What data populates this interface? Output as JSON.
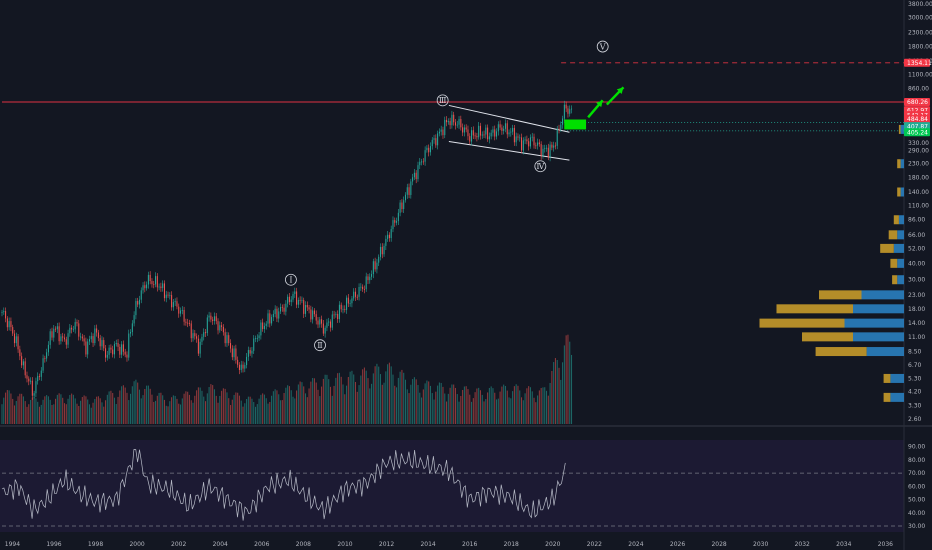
{
  "chart_data": {
    "type": "candlestick",
    "price_axis": {
      "scale": "log",
      "ticks": [
        "3800.00",
        "3000.00",
        "2300.00",
        "1800.00",
        "1400.00",
        "1100.00",
        "860.00",
        "680.00",
        "530.00",
        "420.00",
        "330.00",
        "290.00",
        "230.00",
        "180.00",
        "140.00",
        "110.00",
        "86.00",
        "66.00",
        "52.00",
        "40.00",
        "30.00",
        "23.00",
        "18.00",
        "14.00",
        "11.00",
        "8.50",
        "6.70",
        "5.30",
        "4.20",
        "3.30",
        "2.60"
      ],
      "range": [
        2.6,
        3800
      ]
    },
    "time_axis": {
      "ticks": [
        "1994",
        "1996",
        "1998",
        "2000",
        "2002",
        "2004",
        "2006",
        "2008",
        "2010",
        "2012",
        "2014",
        "2016",
        "2018",
        "2020",
        "2022",
        "2024",
        "2026",
        "2028",
        "2030",
        "2032",
        "2034",
        "2036"
      ],
      "range": [
        1993.5,
        2036.8
      ]
    },
    "price_series": [
      {
        "t": 1993.5,
        "p": 17.0
      },
      {
        "t": 1994.0,
        "p": 12.0
      },
      {
        "t": 1994.5,
        "p": 6.5
      },
      {
        "t": 1995.0,
        "p": 4.0
      },
      {
        "t": 1995.5,
        "p": 7.0
      },
      {
        "t": 1996.0,
        "p": 13.0
      },
      {
        "t": 1996.5,
        "p": 10.0
      },
      {
        "t": 1997.0,
        "p": 14.0
      },
      {
        "t": 1997.5,
        "p": 9.0
      },
      {
        "t": 1998.0,
        "p": 12.0
      },
      {
        "t": 1998.5,
        "p": 8.0
      },
      {
        "t": 1999.0,
        "p": 9.5
      },
      {
        "t": 1999.5,
        "p": 8.0
      },
      {
        "t": 2000.0,
        "p": 20.0
      },
      {
        "t": 2000.5,
        "p": 30.0
      },
      {
        "t": 2001.0,
        "p": 28.0
      },
      {
        "t": 2001.5,
        "p": 22.0
      },
      {
        "t": 2002.0,
        "p": 18.0
      },
      {
        "t": 2002.5,
        "p": 13.0
      },
      {
        "t": 2003.0,
        "p": 9.0
      },
      {
        "t": 2003.5,
        "p": 16.0
      },
      {
        "t": 2004.0,
        "p": 13.0
      },
      {
        "t": 2004.5,
        "p": 9.0
      },
      {
        "t": 2005.0,
        "p": 6.0
      },
      {
        "t": 2005.5,
        "p": 9.0
      },
      {
        "t": 2006.0,
        "p": 13.0
      },
      {
        "t": 2006.5,
        "p": 16.0
      },
      {
        "t": 2007.0,
        "p": 18.0
      },
      {
        "t": 2007.5,
        "p": 23.0
      },
      {
        "t": 2008.0,
        "p": 19.0
      },
      {
        "t": 2008.5,
        "p": 16.0
      },
      {
        "t": 2009.0,
        "p": 12.5
      },
      {
        "t": 2009.5,
        "p": 16.0
      },
      {
        "t": 2010.0,
        "p": 19.0
      },
      {
        "t": 2010.5,
        "p": 23.0
      },
      {
        "t": 2011.0,
        "p": 28.0
      },
      {
        "t": 2011.5,
        "p": 40.0
      },
      {
        "t": 2012.0,
        "p": 60.0
      },
      {
        "t": 2012.5,
        "p": 90.0
      },
      {
        "t": 2013.0,
        "p": 140.0
      },
      {
        "t": 2013.5,
        "p": 210.0
      },
      {
        "t": 2014.0,
        "p": 300.0
      },
      {
        "t": 2014.5,
        "p": 380.0
      },
      {
        "t": 2015.0,
        "p": 500.0
      },
      {
        "t": 2015.5,
        "p": 460.0
      },
      {
        "t": 2016.0,
        "p": 370.0
      },
      {
        "t": 2016.5,
        "p": 400.0
      },
      {
        "t": 2017.0,
        "p": 380.0
      },
      {
        "t": 2017.5,
        "p": 440.0
      },
      {
        "t": 2018.0,
        "p": 400.0
      },
      {
        "t": 2018.5,
        "p": 330.0
      },
      {
        "t": 2019.0,
        "p": 350.0
      },
      {
        "t": 2019.5,
        "p": 290.0
      },
      {
        "t": 2020.0,
        "p": 300.0
      },
      {
        "t": 2020.3,
        "p": 420.0
      },
      {
        "t": 2020.6,
        "p": 620.0
      },
      {
        "t": 2020.9,
        "p": 570.0
      }
    ],
    "volume_series": [
      {
        "t": 1993.5,
        "v": 0.4
      },
      {
        "t": 1995.0,
        "v": 0.3
      },
      {
        "t": 1996.5,
        "v": 0.35
      },
      {
        "t": 1998.0,
        "v": 0.3
      },
      {
        "t": 2000.0,
        "v": 0.5
      },
      {
        "t": 2001.5,
        "v": 0.3
      },
      {
        "t": 2003.5,
        "v": 0.45
      },
      {
        "t": 2005.5,
        "v": 0.3
      },
      {
        "t": 2007.5,
        "v": 0.45
      },
      {
        "t": 2009.0,
        "v": 0.55
      },
      {
        "t": 2010.5,
        "v": 0.6
      },
      {
        "t": 2012.0,
        "v": 0.7
      },
      {
        "t": 2013.5,
        "v": 0.5
      },
      {
        "t": 2015.0,
        "v": 0.45
      },
      {
        "t": 2016.5,
        "v": 0.4
      },
      {
        "t": 2018.0,
        "v": 0.45
      },
      {
        "t": 2019.5,
        "v": 0.4
      },
      {
        "t": 2020.6,
        "v": 1.0
      }
    ],
    "volume_profile": [
      {
        "p": 420.0,
        "buy": 0.02,
        "sell": 0.01
      },
      {
        "p": 230.0,
        "buy": 0.02,
        "sell": 0.02
      },
      {
        "p": 140.0,
        "buy": 0.02,
        "sell": 0.02
      },
      {
        "p": 86.0,
        "buy": 0.03,
        "sell": 0.03
      },
      {
        "p": 66.0,
        "buy": 0.04,
        "sell": 0.05
      },
      {
        "p": 52.0,
        "buy": 0.06,
        "sell": 0.08
      },
      {
        "p": 40.0,
        "buy": 0.04,
        "sell": 0.04
      },
      {
        "p": 30.0,
        "buy": 0.04,
        "sell": 0.03
      },
      {
        "p": 23.0,
        "buy": 0.25,
        "sell": 0.25
      },
      {
        "p": 18.0,
        "buy": 0.3,
        "sell": 0.45
      },
      {
        "p": 14.0,
        "buy": 0.35,
        "sell": 0.5
      },
      {
        "p": 11.0,
        "buy": 0.3,
        "sell": 0.3
      },
      {
        "p": 8.5,
        "buy": 0.22,
        "sell": 0.3
      },
      {
        "p": 5.3,
        "buy": 0.08,
        "sell": 0.04
      },
      {
        "p": 3.8,
        "buy": 0.08,
        "sell": 0.04
      }
    ],
    "oscillator": {
      "ticks": [
        "90.00",
        "80.00",
        "70.00",
        "60.00",
        "50.00",
        "40.00",
        "30.00"
      ],
      "range": [
        27,
        95
      ],
      "overbought": 70,
      "oversold": 30,
      "series": [
        {
          "t": 1993.5,
          "v": 55
        },
        {
          "t": 1994.3,
          "v": 60
        },
        {
          "t": 1995.0,
          "v": 42
        },
        {
          "t": 1995.7,
          "v": 50
        },
        {
          "t": 1996.5,
          "v": 65
        },
        {
          "t": 1997.2,
          "v": 55
        },
        {
          "t": 1998.0,
          "v": 48
        },
        {
          "t": 1999.0,
          "v": 50
        },
        {
          "t": 2000.0,
          "v": 88
        },
        {
          "t": 2000.5,
          "v": 62
        },
        {
          "t": 2001.5,
          "v": 58
        },
        {
          "t": 2002.5,
          "v": 45
        },
        {
          "t": 2003.5,
          "v": 60
        },
        {
          "t": 2004.5,
          "v": 48
        },
        {
          "t": 2005.3,
          "v": 40
        },
        {
          "t": 2006.3,
          "v": 60
        },
        {
          "t": 2007.3,
          "v": 65
        },
        {
          "t": 2008.3,
          "v": 50
        },
        {
          "t": 2009.0,
          "v": 42
        },
        {
          "t": 2010.0,
          "v": 58
        },
        {
          "t": 2011.0,
          "v": 62
        },
        {
          "t": 2012.0,
          "v": 78
        },
        {
          "t": 2013.0,
          "v": 80
        },
        {
          "t": 2014.0,
          "v": 76
        },
        {
          "t": 2015.0,
          "v": 72
        },
        {
          "t": 2016.0,
          "v": 50
        },
        {
          "t": 2017.0,
          "v": 56
        },
        {
          "t": 2018.0,
          "v": 52
        },
        {
          "t": 2019.0,
          "v": 40
        },
        {
          "t": 2020.0,
          "v": 50
        },
        {
          "t": 2020.6,
          "v": 72
        }
      ]
    },
    "horizontal_lines": [
      {
        "price": 680.0,
        "color": "#f23645",
        "style": "dashed"
      },
      {
        "price": 1354.11,
        "color": "#f23645",
        "style": "dashed"
      },
      {
        "price": 475.0,
        "color": "#22ab94",
        "style": "dotted"
      },
      {
        "price": 410.0,
        "color": "#22ab94",
        "style": "dotted"
      }
    ],
    "price_labels": [
      {
        "text": "1354.11",
        "price": 1354.11,
        "color": "#f23645"
      },
      {
        "text": "680.26",
        "price": 680.0,
        "color": "#f23645"
      },
      {
        "text": "612.97",
        "price": 590.0,
        "color": "#f23645"
      },
      {
        "text": "542.17",
        "price": 540.0,
        "color": "#f23645"
      },
      {
        "text": "484.84",
        "price": 505.0,
        "color": "#f23645"
      },
      {
        "text": "407.87",
        "price": 445.0,
        "color": "#22ab94"
      },
      {
        "text": "405.24",
        "price": 400.0,
        "color": "#00c853"
      }
    ],
    "wave_labels": [
      {
        "text": "Ⅲ",
        "t": 2014.7,
        "p": 700
      },
      {
        "text": "Ⅳ",
        "t": 2019.4,
        "p": 220
      },
      {
        "text": "Ⅴ",
        "t": 2022.4,
        "p": 1800
      },
      {
        "text": "Ⅰ",
        "t": 2007.4,
        "p": 30
      },
      {
        "text": "Ⅱ",
        "t": 2008.8,
        "p": 9.5
      }
    ],
    "colors": {
      "up": "#26a69a",
      "down": "#ef5350",
      "volume_profile_buy": "#2a7fc0",
      "volume_profile_sell": "#c79a2a",
      "arrow": "#00e000"
    }
  }
}
